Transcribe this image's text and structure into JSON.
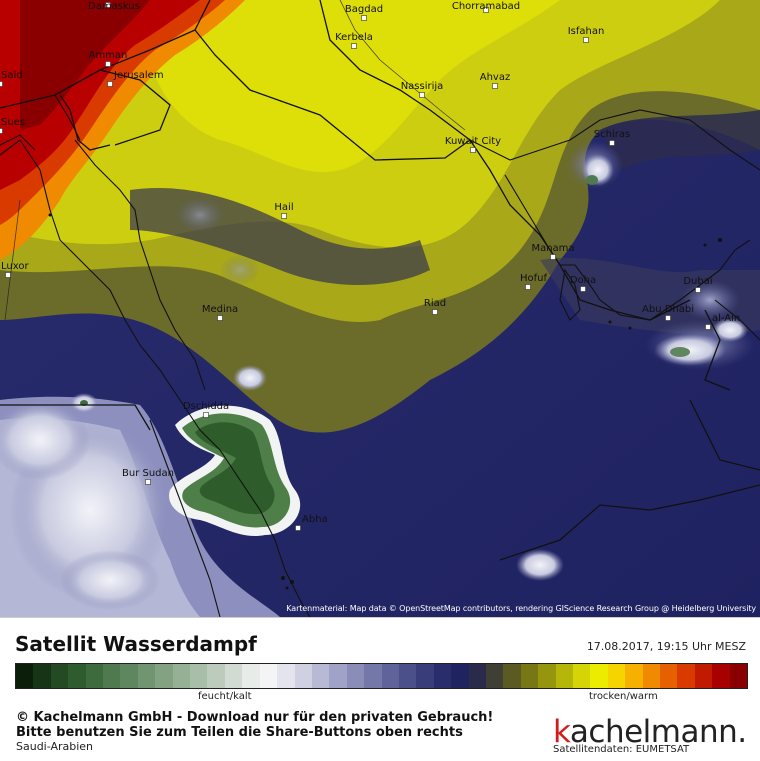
{
  "map": {
    "cities": [
      {
        "name": "Damaskus"
      },
      {
        "name": "Bagdad"
      },
      {
        "name": "Chorramabad"
      },
      {
        "name": "Kerbela"
      },
      {
        "name": "Isfahan"
      },
      {
        "name": "Amman"
      },
      {
        "name": "Jerusalem"
      },
      {
        "name": "Ahvaz"
      },
      {
        "name": "Nassirija"
      },
      {
        "name": "Said"
      },
      {
        "name": "Sues"
      },
      {
        "name": "Schiras"
      },
      {
        "name": "Kuwait City"
      },
      {
        "name": "Hail"
      },
      {
        "name": "Manama"
      },
      {
        "name": "Hofuf"
      },
      {
        "name": "Doha"
      },
      {
        "name": "Luxor"
      },
      {
        "name": "Dubai"
      },
      {
        "name": "Riad"
      },
      {
        "name": "Medina"
      },
      {
        "name": "Abu Dhabi"
      },
      {
        "name": "al-Ain"
      },
      {
        "name": "Dschidda"
      },
      {
        "name": "Bur Sudan"
      },
      {
        "name": "Abha"
      }
    ],
    "credit": "Kartenmaterial: Map data © OpenStreetMap contributors, rendering GIScience Research Group @ Heidelberg University"
  },
  "footer": {
    "title": "Satellit Wasserdampf",
    "timestamp": "17.08.2017, 19:15 Uhr MESZ",
    "scale_left_label": "feucht/kalt",
    "scale_right_label": "trocken/warm",
    "copyright_line1": "© Kachelmann GmbH - Download nur für den privaten Gebrauch!",
    "copyright_line2": "Bitte benutzen Sie zum Teilen die Share-Buttons oben rechts",
    "region": "Saudi-Arabien",
    "brand_first_letter": "k",
    "brand_rest": "achelmann.",
    "data_source": "Satellitendaten: EUMETSAT"
  },
  "colors": {
    "scale": [
      "#0a1e0a",
      "#163516",
      "#244a24",
      "#2f5c2f",
      "#3e6b3e",
      "#4f7a4f",
      "#5f875f",
      "#709570",
      "#82a282",
      "#95b095",
      "#a8bea8",
      "#bccbbc",
      "#d2dbd2",
      "#e8ece8",
      "#f4f4f6",
      "#e4e4ee",
      "#cfd0e2",
      "#b8bad5",
      "#a0a3c7",
      "#8a8db8",
      "#7478a9",
      "#5f6399",
      "#4b4f8a",
      "#393d7a",
      "#292d6b",
      "#1f2360",
      "#2a2a4a",
      "#3f3f35",
      "#5a5a22",
      "#777716",
      "#96960e",
      "#b5b50a",
      "#d4d406",
      "#ecec00",
      "#f6d400",
      "#f6b000",
      "#f08a00",
      "#e66000",
      "#d83a00",
      "#c21a00",
      "#a80000",
      "#8a0000"
    ]
  }
}
